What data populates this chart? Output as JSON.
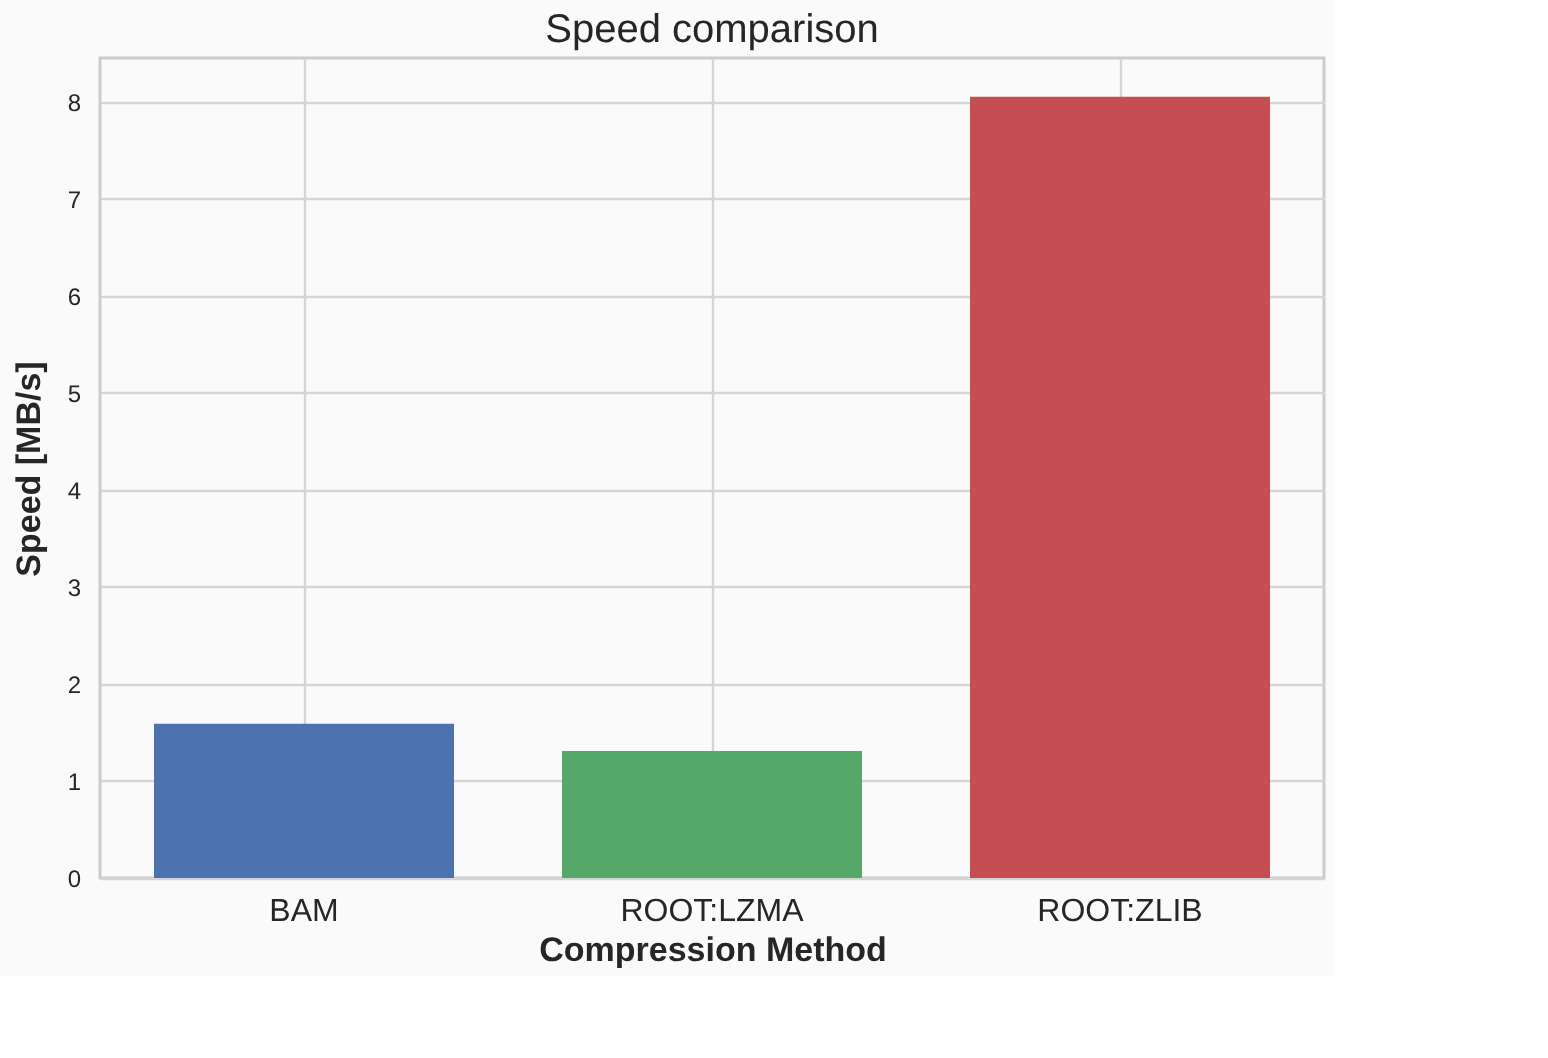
{
  "chart_data": {
    "type": "bar",
    "title": "Speed comparison",
    "xlabel": "Compression Method",
    "ylabel": "Speed [MB/s]",
    "categories": [
      "BAM",
      "ROOT:LZMA",
      "ROOT:ZLIB"
    ],
    "values": [
      1.59,
      1.31,
      8.05
    ],
    "colors": [
      "#4c72b0",
      "#55a868",
      "#c44e52"
    ],
    "ylim": [
      0,
      8.45
    ],
    "yticks": [
      0,
      1,
      2,
      3,
      4,
      5,
      6,
      7,
      8
    ],
    "grid": true
  }
}
